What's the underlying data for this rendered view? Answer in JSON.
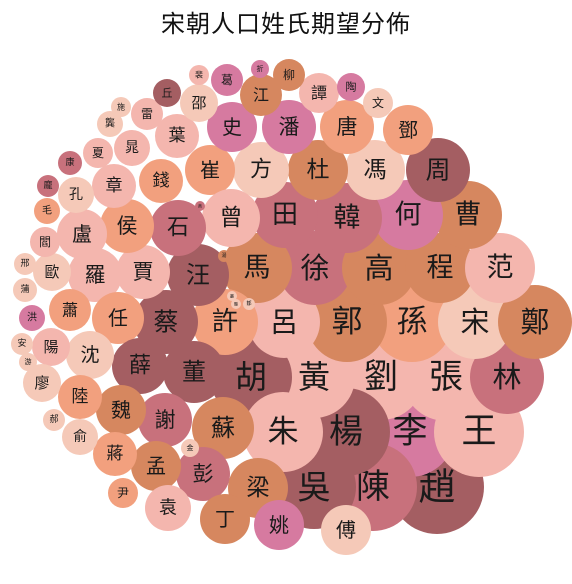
{
  "chart_data": {
    "type": "bubble",
    "title": "宋朝人口姓氏期望分佈",
    "colors": {
      "dark": "#a45e62",
      "rose": "#c8717c",
      "pink": "#d67aa0",
      "orange": "#d6875f",
      "salmon": "#f2a07e",
      "light": "#f4b6ae",
      "pale": "#f5c9b8"
    },
    "bubbles": [
      {
        "name": "趙",
        "value": 1.0,
        "color": "dark"
      },
      {
        "name": "李",
        "value": 0.95,
        "color": "pink"
      },
      {
        "name": "王",
        "value": 0.95,
        "color": "light"
      },
      {
        "name": "張",
        "value": 0.92,
        "color": "light"
      },
      {
        "name": "劉",
        "value": 0.9,
        "color": "light"
      },
      {
        "name": "陳",
        "value": 0.88,
        "color": "rose"
      },
      {
        "name": "楊",
        "value": 0.88,
        "color": "dark"
      },
      {
        "name": "吳",
        "value": 0.85,
        "color": "dark"
      },
      {
        "name": "黃",
        "value": 0.83,
        "color": "light"
      },
      {
        "name": "胡",
        "value": 0.83,
        "color": "dark"
      },
      {
        "name": "朱",
        "value": 0.8,
        "color": "light"
      },
      {
        "name": "林",
        "value": 0.75,
        "color": "rose"
      },
      {
        "name": "孫",
        "value": 0.8,
        "color": "salmon"
      },
      {
        "name": "郭",
        "value": 0.8,
        "color": "orange"
      },
      {
        "name": "宋",
        "value": 0.75,
        "color": "pale"
      },
      {
        "name": "鄭",
        "value": 0.75,
        "color": "orange"
      },
      {
        "name": "呂",
        "value": 0.72,
        "color": "light"
      },
      {
        "name": "徐",
        "value": 0.75,
        "color": "rose"
      },
      {
        "name": "高",
        "value": 0.75,
        "color": "orange"
      },
      {
        "name": "程",
        "value": 0.7,
        "color": "orange"
      },
      {
        "name": "范",
        "value": 0.7,
        "color": "light"
      },
      {
        "name": "曹",
        "value": 0.68,
        "color": "orange"
      },
      {
        "name": "何",
        "value": 0.7,
        "color": "pink"
      },
      {
        "name": "韓",
        "value": 0.7,
        "color": "rose"
      },
      {
        "name": "馬",
        "value": 0.7,
        "color": "orange"
      },
      {
        "name": "田",
        "value": 0.67,
        "color": "rose"
      },
      {
        "name": "許",
        "value": 0.67,
        "color": "salmon"
      },
      {
        "name": "蔡",
        "value": 0.65,
        "color": "dark"
      },
      {
        "name": "董",
        "value": 0.63,
        "color": "dark"
      },
      {
        "name": "蘇",
        "value": 0.63,
        "color": "orange"
      },
      {
        "name": "梁",
        "value": 0.6,
        "color": "orange"
      },
      {
        "name": "彭",
        "value": 0.55,
        "color": "rose"
      },
      {
        "name": "姚",
        "value": 0.5,
        "color": "pink"
      },
      {
        "name": "丁",
        "value": 0.5,
        "color": "orange"
      },
      {
        "name": "傅",
        "value": 0.5,
        "color": "pale"
      },
      {
        "name": "周",
        "value": 0.65,
        "color": "dark"
      },
      {
        "name": "馮",
        "value": 0.6,
        "color": "pale"
      },
      {
        "name": "杜",
        "value": 0.6,
        "color": "orange"
      },
      {
        "name": "方",
        "value": 0.55,
        "color": "pale"
      },
      {
        "name": "崔",
        "value": 0.5,
        "color": "salmon"
      },
      {
        "name": "曾",
        "value": 0.58,
        "color": "light"
      },
      {
        "name": "汪",
        "value": 0.62,
        "color": "dark"
      },
      {
        "name": "石",
        "value": 0.57,
        "color": "rose"
      },
      {
        "name": "賈",
        "value": 0.55,
        "color": "light"
      },
      {
        "name": "侯",
        "value": 0.55,
        "color": "salmon"
      },
      {
        "name": "羅",
        "value": 0.55,
        "color": "light"
      },
      {
        "name": "任",
        "value": 0.52,
        "color": "salmon"
      },
      {
        "name": "薛",
        "value": 0.57,
        "color": "dark"
      },
      {
        "name": "謝",
        "value": 0.55,
        "color": "rose"
      },
      {
        "name": "孟",
        "value": 0.5,
        "color": "orange"
      },
      {
        "name": "袁",
        "value": 0.47,
        "color": "light"
      },
      {
        "name": "潘",
        "value": 0.55,
        "color": "pink"
      },
      {
        "name": "唐",
        "value": 0.55,
        "color": "salmon"
      },
      {
        "name": "史",
        "value": 0.5,
        "color": "pink"
      },
      {
        "name": "鄧",
        "value": 0.5,
        "color": "salmon"
      },
      {
        "name": "錢",
        "value": 0.45,
        "color": "salmon"
      },
      {
        "name": "章",
        "value": 0.45,
        "color": "light"
      },
      {
        "name": "盧",
        "value": 0.5,
        "color": "light"
      },
      {
        "name": "魏",
        "value": 0.5,
        "color": "orange"
      },
      {
        "name": "蔣",
        "value": 0.45,
        "color": "salmon"
      },
      {
        "name": "沈",
        "value": 0.48,
        "color": "pale"
      },
      {
        "name": "葉",
        "value": 0.45,
        "color": "light"
      },
      {
        "name": "江",
        "value": 0.43,
        "color": "orange"
      },
      {
        "name": "陸",
        "value": 0.45,
        "color": "salmon"
      },
      {
        "name": "蕭",
        "value": 0.43,
        "color": "salmon"
      },
      {
        "name": "譚",
        "value": 0.4,
        "color": "light"
      },
      {
        "name": "邵",
        "value": 0.38,
        "color": "pale"
      },
      {
        "name": "孔",
        "value": 0.36,
        "color": "pale"
      },
      {
        "name": "晁",
        "value": 0.36,
        "color": "light"
      },
      {
        "name": "歐",
        "value": 0.38,
        "color": "pale"
      },
      {
        "name": "陽",
        "value": 0.38,
        "color": "light"
      },
      {
        "name": "廖",
        "value": 0.38,
        "color": "pale"
      },
      {
        "name": "俞",
        "value": 0.36,
        "color": "pale"
      },
      {
        "name": "柳",
        "value": 0.33,
        "color": "orange"
      },
      {
        "name": "葛",
        "value": 0.33,
        "color": "pink"
      },
      {
        "name": "文",
        "value": 0.3,
        "color": "pale"
      },
      {
        "name": "夏",
        "value": 0.3,
        "color": "light"
      },
      {
        "name": "雷",
        "value": 0.32,
        "color": "light"
      },
      {
        "name": "閻",
        "value": 0.3,
        "color": "light"
      },
      {
        "name": "尹",
        "value": 0.3,
        "color": "salmon"
      },
      {
        "name": "陶",
        "value": 0.28,
        "color": "pink"
      },
      {
        "name": "丘",
        "value": 0.28,
        "color": "dark"
      },
      {
        "name": "龔",
        "value": 0.26,
        "color": "pale"
      },
      {
        "name": "毛",
        "value": 0.27,
        "color": "salmon"
      },
      {
        "name": "洪",
        "value": 0.27,
        "color": "pink"
      },
      {
        "name": "康",
        "value": 0.24,
        "color": "rose"
      },
      {
        "name": "蒲",
        "value": 0.24,
        "color": "pale"
      },
      {
        "name": "邢",
        "value": 0.22,
        "color": "pale"
      },
      {
        "name": "安",
        "value": 0.22,
        "color": "pale"
      },
      {
        "name": "郝",
        "value": 0.22,
        "color": "pale"
      },
      {
        "name": "施",
        "value": 0.2,
        "color": "pale"
      },
      {
        "name": "裴",
        "value": 0.19,
        "color": "light"
      },
      {
        "name": "折",
        "value": 0.17,
        "color": "pink"
      },
      {
        "name": "龐",
        "value": 0.22,
        "color": "rose"
      },
      {
        "name": "游",
        "value": 0.18,
        "color": "pale"
      },
      {
        "name": "金",
        "value": 0.18,
        "color": "pale"
      },
      {
        "name": "湯",
        "value": 0.13,
        "color": "orange"
      },
      {
        "name": "鄒",
        "value": 0.12,
        "color": "pale"
      },
      {
        "name": "燕",
        "value": 0.1,
        "color": "rose"
      },
      {
        "name": "叢",
        "value": 0.1,
        "color": "pale"
      },
      {
        "name": "縣",
        "value": 0.1,
        "color": "pale"
      }
    ]
  }
}
